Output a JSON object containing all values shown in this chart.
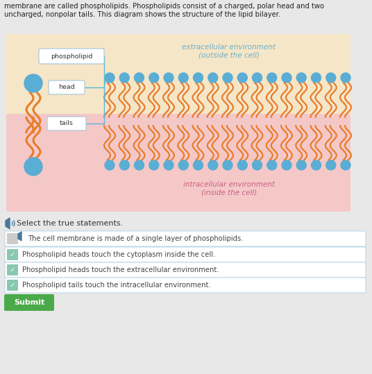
{
  "bg_color": "#e8e8e8",
  "header_text1": "membrane are called phospholipids. Phospholipids consist of a charged, polar head and two",
  "header_text2": "uncharged, nonpolar tails. This diagram shows the structure of the lipid bilayer.",
  "diagram_bg": "#f5e6c8",
  "diagram_inner_bg": "#f5c8c8",
  "extracellular_label": "extracellular environment\n(outside the cell)",
  "intracellular_label": "intracellular environment\n(inside the cell)",
  "phospholipid_label": "phospholipid",
  "head_label": "head",
  "tails_label": "tails",
  "head_color": "#5aadd4",
  "tail_color": "#e87c2a",
  "select_text": "Select the true statements.",
  "statements": [
    "The cell membrane is made of a single layer of phospholipids.",
    "Phospholipid heads touch the cytoplasm inside the cell.",
    "Phospholipid heads touch the extracellular environment.",
    "Phospholipid tails touch the intracellular environment."
  ],
  "statement_correct": [
    false,
    true,
    true,
    true
  ],
  "submit_text": "Submit",
  "submit_color": "#4aaa4a",
  "check_color_on": "#88c8b0",
  "check_color_off": "#cccccc",
  "box_border_color": "#b8d4e8",
  "speaker_color": "#4a7a9a",
  "label_box_color": "#e8f4f8",
  "label_box_border": "#a0c4d8"
}
